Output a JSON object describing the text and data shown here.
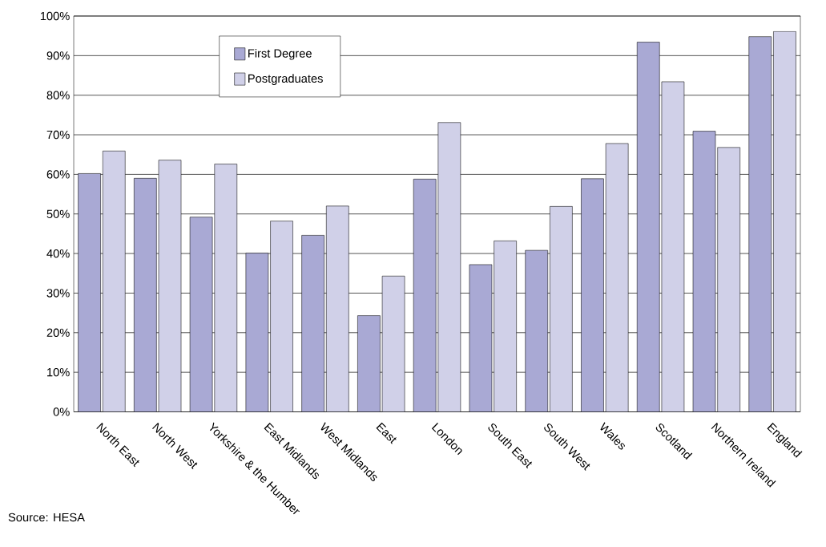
{
  "chart_data": {
    "type": "bar",
    "categories": [
      "North East",
      "North West",
      "Yorkshire & the Humber",
      "East Midlands",
      "West Midlands",
      "East",
      "London",
      "South East",
      "South West",
      "Wales",
      "Scotland",
      "Northern Ireland",
      "England"
    ],
    "series": [
      {
        "name": "First Degree",
        "color": "#a9a9d4",
        "values": [
          60.2,
          59,
          49.2,
          40.1,
          44.6,
          24.3,
          58.8,
          37.2,
          40.8,
          58.9,
          93.4,
          70.9,
          94.8
        ]
      },
      {
        "name": "Postgraduates",
        "color": "#d0d0e8",
        "values": [
          65.9,
          63.6,
          62.6,
          48.2,
          52,
          34.3,
          73.1,
          43.2,
          51.9,
          67.8,
          83.4,
          66.8,
          96.1
        ]
      }
    ],
    "ylim": [
      0,
      100
    ],
    "yticks": [
      {
        "value": 0,
        "label": "0%"
      },
      {
        "value": 10,
        "label": "10%"
      },
      {
        "value": 20,
        "label": "20%"
      },
      {
        "value": 30,
        "label": "30%"
      },
      {
        "value": 40,
        "label": "40%"
      },
      {
        "value": 50,
        "label": "50%"
      },
      {
        "value": 60,
        "label": "60%"
      },
      {
        "value": 70,
        "label": "70%"
      },
      {
        "value": 80,
        "label": "80%"
      },
      {
        "value": 90,
        "label": "90%"
      },
      {
        "value": 100,
        "label": "100%"
      }
    ],
    "grid": "y",
    "legend": "top left",
    "annotations": [
      "Source: HESA"
    ]
  }
}
